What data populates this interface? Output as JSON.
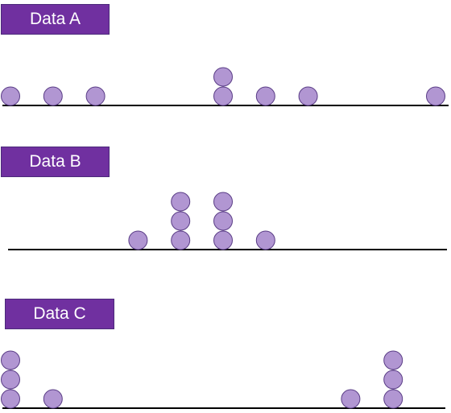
{
  "colors": {
    "label_fill": "#7030a0",
    "dot_fill": "#b196d2",
    "dot_stroke": "#5a3d86",
    "axis": "#000000"
  },
  "chart_data": [
    {
      "type": "scatter",
      "subtype": "dot-plot",
      "title": "Data A",
      "xlim": [
        0,
        10
      ],
      "axis_ticks": false,
      "points": [
        {
          "x": 0,
          "count": 1
        },
        {
          "x": 1,
          "count": 1
        },
        {
          "x": 2,
          "count": 1
        },
        {
          "x": 5,
          "count": 2
        },
        {
          "x": 6,
          "count": 1
        },
        {
          "x": 7,
          "count": 1
        },
        {
          "x": 10,
          "count": 1
        }
      ]
    },
    {
      "type": "scatter",
      "subtype": "dot-plot",
      "title": "Data B",
      "xlim": [
        0,
        10
      ],
      "axis_ticks": false,
      "points": [
        {
          "x": 3,
          "count": 1
        },
        {
          "x": 4,
          "count": 3
        },
        {
          "x": 5,
          "count": 3
        },
        {
          "x": 6,
          "count": 1
        }
      ]
    },
    {
      "type": "scatter",
      "subtype": "dot-plot",
      "title": "Data C",
      "xlim": [
        0,
        10
      ],
      "axis_ticks": false,
      "points": [
        {
          "x": 0,
          "count": 3
        },
        {
          "x": 1,
          "count": 1
        },
        {
          "x": 8,
          "count": 1
        },
        {
          "x": 9,
          "count": 3
        }
      ]
    }
  ]
}
